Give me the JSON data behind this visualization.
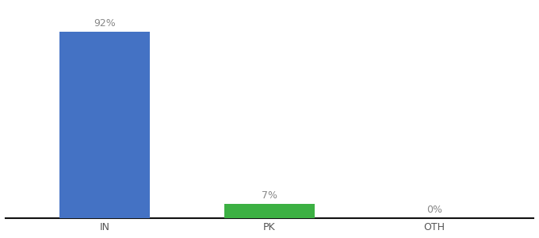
{
  "categories": [
    "IN",
    "PK",
    "OTH"
  ],
  "values": [
    92,
    7,
    0
  ],
  "labels": [
    "92%",
    "7%",
    "0%"
  ],
  "bar_colors": [
    "#4472C4",
    "#3CB043",
    "#4472C4"
  ],
  "background_color": "#ffffff",
  "ylim": [
    0,
    105
  ],
  "bar_width": 0.55,
  "label_fontsize": 9,
  "tick_fontsize": 9,
  "label_color": "#888888",
  "tick_color": "#555555",
  "spine_color": "#111111"
}
